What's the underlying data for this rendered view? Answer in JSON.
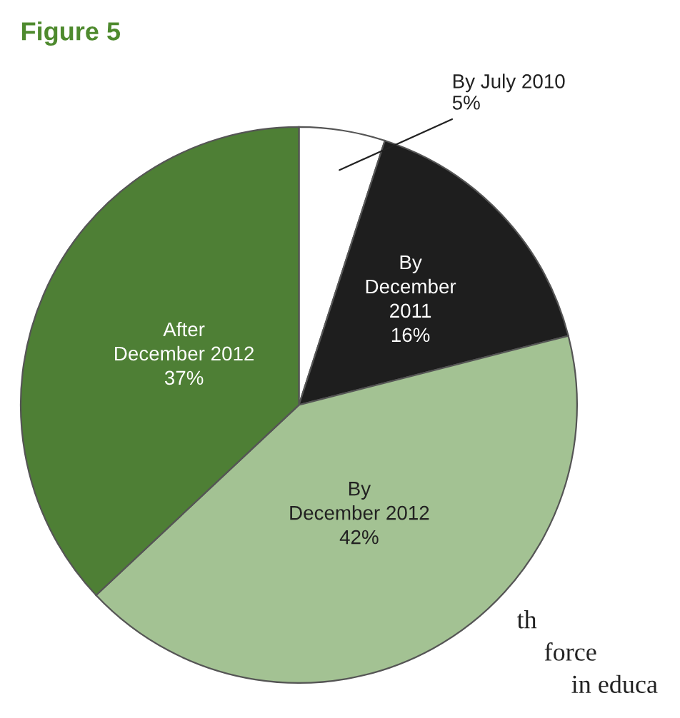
{
  "chart_data": {
    "type": "pie",
    "title": "Figure 5",
    "categories": [
      "By July 2010",
      "By December 2011",
      "By December 2012",
      "After December 2012"
    ],
    "values": [
      5,
      16,
      42,
      37
    ],
    "colors": [
      "#ffffff",
      "#1e1e1e",
      "#a3c293",
      "#4e7f35"
    ],
    "value_labels": [
      "5%",
      "16%",
      "42%",
      "37%"
    ],
    "annotations": [
      "th",
      "force",
      "in educa"
    ]
  }
}
